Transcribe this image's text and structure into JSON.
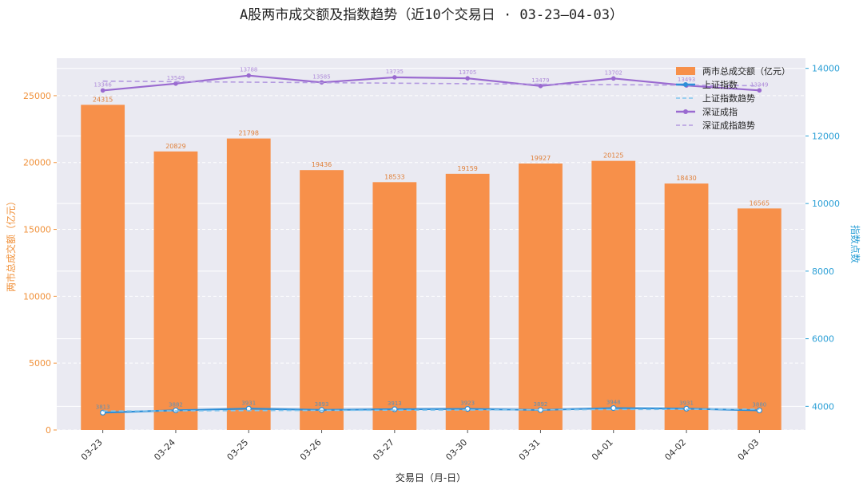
{
  "chart_data": {
    "type": "bar",
    "title": "A股两市成交额及指数趋势（近10个交易日 · 03-23—04-03）",
    "xlabel": "交易日（月-日）",
    "ylabel": "两市总成交额（亿元）",
    "y2label": "指数点数",
    "categories": [
      "03-23",
      "03-24",
      "03-25",
      "03-26",
      "03-27",
      "03-30",
      "03-31",
      "04-01",
      "04-02",
      "04-03"
    ],
    "ylim": [
      0,
      27800
    ],
    "y2lim": [
      3300,
      14300
    ],
    "yticks": [
      0,
      5000,
      10000,
      15000,
      20000,
      25000
    ],
    "y2ticks": [
      4000,
      6000,
      8000,
      10000,
      12000,
      14000
    ],
    "grid": true,
    "legend_position": "top-right",
    "series": [
      {
        "name": "两市总成交额（亿元）",
        "kind": "bar",
        "axis": "left",
        "color": "#f7904a",
        "values": [
          24315,
          20829,
          21798,
          19436,
          18533,
          19159,
          19927,
          20125,
          18430,
          16565
        ]
      },
      {
        "name": "上证指数",
        "kind": "line",
        "axis": "right",
        "color": "#2e8fd8",
        "values": [
          3813,
          3882,
          3931,
          3893,
          3913,
          3923,
          3892,
          3948,
          3931,
          3880
        ]
      },
      {
        "name": "上证指数趋势",
        "kind": "trend",
        "axis": "right",
        "color": "#7fc4ee",
        "values": [
          3860,
          3866,
          3873,
          3879,
          3885,
          3891,
          3898,
          3904,
          3910,
          3916
        ]
      },
      {
        "name": "深证成指",
        "kind": "line",
        "axis": "right",
        "color": "#9a6ad0",
        "values": [
          13346,
          13549,
          13788,
          13585,
          13735,
          13705,
          13479,
          13702,
          13493,
          13349
        ]
      },
      {
        "name": "深证成指趋势",
        "kind": "trend",
        "axis": "right",
        "color": "#b39ae0",
        "values": [
          13622,
          13607,
          13592,
          13577,
          13562,
          13547,
          13532,
          13517,
          13502,
          13487
        ]
      }
    ]
  }
}
